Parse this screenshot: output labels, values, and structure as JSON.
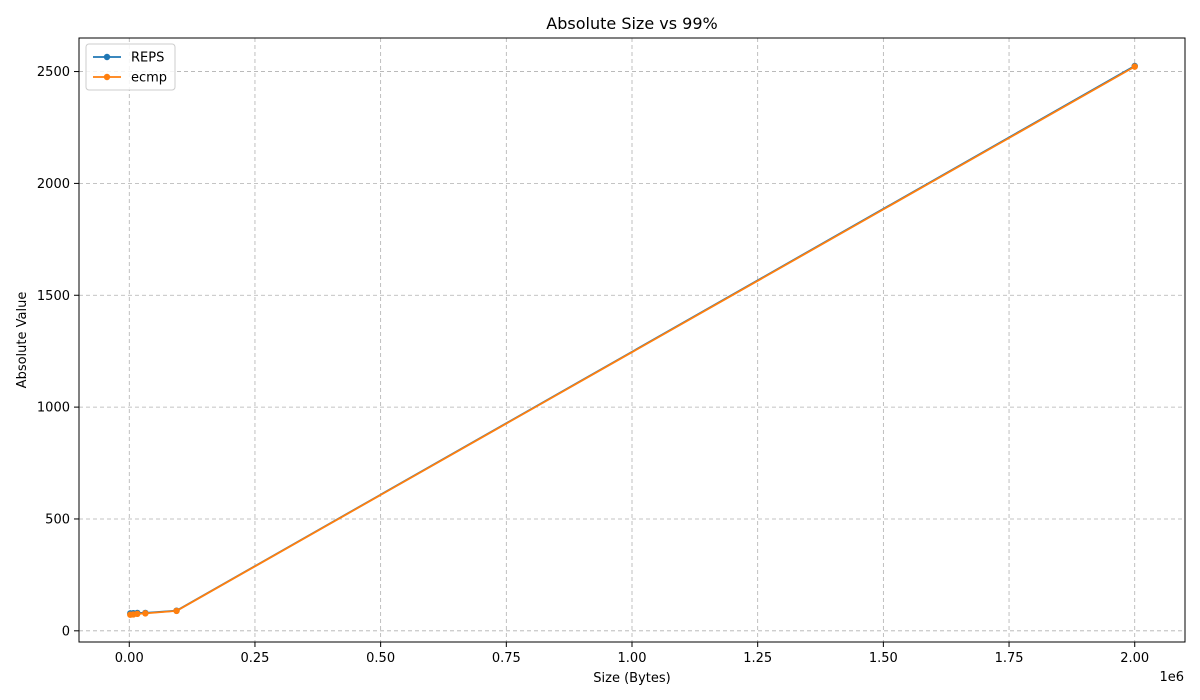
{
  "chart_data": {
    "type": "line",
    "title": "Absolute Size vs 99%",
    "xlabel": "Size (Bytes)",
    "ylabel": "Absolute Value",
    "x_offset_label": "1e6",
    "xlim": [
      -0.1,
      2.1
    ],
    "ylim": [
      -50,
      2650
    ],
    "x_scale_multiplier": 1000000,
    "xticks": [
      0.0,
      0.25,
      0.5,
      0.75,
      1.0,
      1.25,
      1.5,
      1.75,
      2.0
    ],
    "xtick_labels": [
      "0.00",
      "0.25",
      "0.50",
      "0.75",
      "1.00",
      "1.25",
      "1.50",
      "1.75",
      "2.00"
    ],
    "yticks": [
      0,
      500,
      1000,
      1500,
      2000,
      2500
    ],
    "ytick_labels": [
      "0",
      "500",
      "1000",
      "1500",
      "2000",
      "2500"
    ],
    "grid": true,
    "legend_position": "top-left",
    "series": [
      {
        "name": "REPS",
        "color": "#1f77b4",
        "x": [
          0.002,
          0.008,
          0.016,
          0.032,
          0.094,
          2.0
        ],
        "y": [
          78,
          79,
          80,
          80,
          90,
          2525
        ]
      },
      {
        "name": "ecmp",
        "color": "#ff7f0e",
        "x": [
          0.002,
          0.008,
          0.016,
          0.032,
          0.094,
          2.0
        ],
        "y": [
          72,
          73,
          76,
          78,
          89,
          2522
        ]
      }
    ]
  }
}
